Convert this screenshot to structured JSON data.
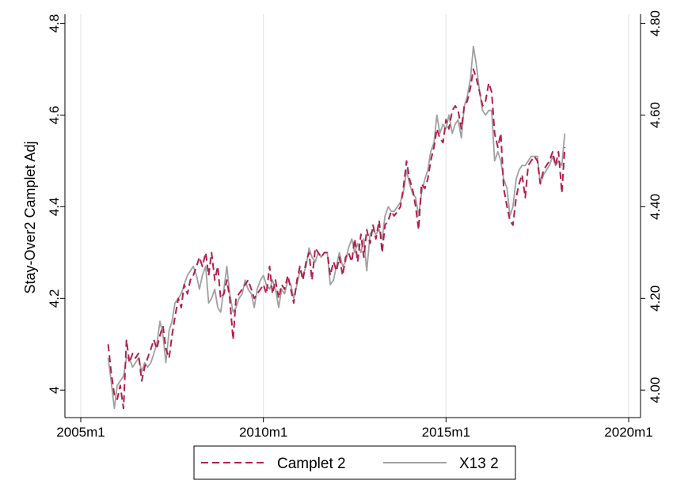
{
  "chart_data": {
    "type": "line",
    "ylabel": "Stay-Over2 Camplet Adj",
    "x_ticks": [
      "2005m1",
      "2010m1",
      "2015m1",
      "2020m1"
    ],
    "x_range": [
      2005.0,
      2020.0
    ],
    "y_left_ticks": [
      "4",
      "4.2",
      "4.4",
      "4.6",
      "4.8"
    ],
    "y_right_ticks": [
      "4.00",
      "4.20",
      "4.40",
      "4.60",
      "4.80"
    ],
    "y_range": [
      3.94,
      4.82
    ],
    "grid": "vertical",
    "legend_position": "bottom",
    "series": [
      {
        "name": "Camplet 2",
        "color": "#b41e4b",
        "style": "dashed",
        "points": [
          [
            2005.75,
            4.1
          ],
          [
            2005.83,
            4.04
          ],
          [
            2005.92,
            3.99
          ],
          [
            2006.0,
            3.98
          ],
          [
            2006.08,
            4.01
          ],
          [
            2006.17,
            3.96
          ],
          [
            2006.25,
            4.11
          ],
          [
            2006.33,
            4.06
          ],
          [
            2006.42,
            4.08
          ],
          [
            2006.5,
            4.07
          ],
          [
            2006.58,
            4.08
          ],
          [
            2006.67,
            4.02
          ],
          [
            2006.75,
            4.05
          ],
          [
            2006.83,
            4.07
          ],
          [
            2006.92,
            4.09
          ],
          [
            2007.0,
            4.11
          ],
          [
            2007.08,
            4.09
          ],
          [
            2007.17,
            4.12
          ],
          [
            2007.25,
            4.14
          ],
          [
            2007.33,
            4.09
          ],
          [
            2007.42,
            4.07
          ],
          [
            2007.5,
            4.12
          ],
          [
            2007.58,
            4.16
          ],
          [
            2007.67,
            4.2
          ],
          [
            2007.75,
            4.18
          ],
          [
            2007.83,
            4.23
          ],
          [
            2007.92,
            4.21
          ],
          [
            2008.0,
            4.24
          ],
          [
            2008.08,
            4.25
          ],
          [
            2008.17,
            4.27
          ],
          [
            2008.25,
            4.29
          ],
          [
            2008.33,
            4.27
          ],
          [
            2008.42,
            4.3
          ],
          [
            2008.5,
            4.25
          ],
          [
            2008.58,
            4.3
          ],
          [
            2008.67,
            4.24
          ],
          [
            2008.75,
            4.27
          ],
          [
            2008.83,
            4.2
          ],
          [
            2008.92,
            4.21
          ],
          [
            2009.0,
            4.24
          ],
          [
            2009.08,
            4.2
          ],
          [
            2009.17,
            4.11
          ],
          [
            2009.25,
            4.2
          ],
          [
            2009.33,
            4.21
          ],
          [
            2009.42,
            4.22
          ],
          [
            2009.5,
            4.23
          ],
          [
            2009.58,
            4.24
          ],
          [
            2009.67,
            4.22
          ],
          [
            2009.75,
            4.2
          ],
          [
            2009.83,
            4.21
          ],
          [
            2009.92,
            4.22
          ],
          [
            2010.0,
            4.23
          ],
          [
            2010.08,
            4.21
          ],
          [
            2010.17,
            4.27
          ],
          [
            2010.25,
            4.21
          ],
          [
            2010.33,
            4.24
          ],
          [
            2010.42,
            4.2
          ],
          [
            2010.5,
            4.23
          ],
          [
            2010.58,
            4.22
          ],
          [
            2010.67,
            4.25
          ],
          [
            2010.75,
            4.22
          ],
          [
            2010.83,
            4.19
          ],
          [
            2010.92,
            4.24
          ],
          [
            2011.0,
            4.27
          ],
          [
            2011.08,
            4.24
          ],
          [
            2011.17,
            4.28
          ],
          [
            2011.25,
            4.3
          ],
          [
            2011.33,
            4.24
          ],
          [
            2011.42,
            4.31
          ],
          [
            2011.5,
            4.3
          ],
          [
            2011.58,
            4.29
          ],
          [
            2011.67,
            4.3
          ],
          [
            2011.75,
            4.3
          ],
          [
            2011.83,
            4.25
          ],
          [
            2011.92,
            4.28
          ],
          [
            2012.0,
            4.26
          ],
          [
            2012.08,
            4.29
          ],
          [
            2012.17,
            4.25
          ],
          [
            2012.25,
            4.29
          ],
          [
            2012.33,
            4.3
          ],
          [
            2012.42,
            4.28
          ],
          [
            2012.5,
            4.33
          ],
          [
            2012.58,
            4.28
          ],
          [
            2012.67,
            4.34
          ],
          [
            2012.75,
            4.29
          ],
          [
            2012.83,
            4.35
          ],
          [
            2012.92,
            4.32
          ],
          [
            2013.0,
            4.36
          ],
          [
            2013.08,
            4.33
          ],
          [
            2013.17,
            4.37
          ],
          [
            2013.25,
            4.3
          ],
          [
            2013.33,
            4.36
          ],
          [
            2013.42,
            4.37
          ],
          [
            2013.5,
            4.39
          ],
          [
            2013.58,
            4.38
          ],
          [
            2013.67,
            4.39
          ],
          [
            2013.75,
            4.4
          ],
          [
            2013.83,
            4.44
          ],
          [
            2013.92,
            4.5
          ],
          [
            2014.0,
            4.46
          ],
          [
            2014.08,
            4.44
          ],
          [
            2014.17,
            4.4
          ],
          [
            2014.25,
            4.35
          ],
          [
            2014.33,
            4.45
          ],
          [
            2014.42,
            4.44
          ],
          [
            2014.5,
            4.46
          ],
          [
            2014.58,
            4.5
          ],
          [
            2014.67,
            4.53
          ],
          [
            2014.75,
            4.57
          ],
          [
            2014.83,
            4.55
          ],
          [
            2014.92,
            4.54
          ],
          [
            2015.0,
            4.59
          ],
          [
            2015.08,
            4.57
          ],
          [
            2015.17,
            4.61
          ],
          [
            2015.25,
            4.62
          ],
          [
            2015.33,
            4.61
          ],
          [
            2015.42,
            4.57
          ],
          [
            2015.5,
            4.62
          ],
          [
            2015.58,
            4.63
          ],
          [
            2015.67,
            4.66
          ],
          [
            2015.75,
            4.7
          ],
          [
            2015.83,
            4.68
          ],
          [
            2015.92,
            4.65
          ],
          [
            2016.0,
            4.62
          ],
          [
            2016.08,
            4.63
          ],
          [
            2016.17,
            4.67
          ],
          [
            2016.25,
            4.65
          ],
          [
            2016.33,
            4.56
          ],
          [
            2016.42,
            4.53
          ],
          [
            2016.5,
            4.56
          ],
          [
            2016.58,
            4.44
          ],
          [
            2016.67,
            4.4
          ],
          [
            2016.75,
            4.37
          ],
          [
            2016.83,
            4.36
          ],
          [
            2016.92,
            4.42
          ],
          [
            2017.0,
            4.45
          ],
          [
            2017.08,
            4.47
          ],
          [
            2017.17,
            4.42
          ],
          [
            2017.25,
            4.49
          ],
          [
            2017.33,
            4.5
          ],
          [
            2017.42,
            4.51
          ],
          [
            2017.5,
            4.5
          ],
          [
            2017.58,
            4.45
          ],
          [
            2017.67,
            4.48
          ],
          [
            2017.75,
            4.49
          ],
          [
            2017.83,
            4.5
          ],
          [
            2017.92,
            4.52
          ],
          [
            2018.0,
            4.49
          ],
          [
            2018.08,
            4.52
          ],
          [
            2018.17,
            4.43
          ],
          [
            2018.25,
            4.53
          ]
        ]
      },
      {
        "name": "X13 2",
        "color": "#a0a0a0",
        "style": "solid",
        "points": [
          [
            2005.75,
            4.07
          ],
          [
            2005.83,
            4.02
          ],
          [
            2005.92,
            3.96
          ],
          [
            2006.0,
            4.01
          ],
          [
            2006.08,
            4.02
          ],
          [
            2006.17,
            4.03
          ],
          [
            2006.25,
            4.07
          ],
          [
            2006.33,
            4.07
          ],
          [
            2006.42,
            4.05
          ],
          [
            2006.5,
            4.06
          ],
          [
            2006.58,
            4.07
          ],
          [
            2006.67,
            4.04
          ],
          [
            2006.75,
            4.06
          ],
          [
            2006.83,
            4.05
          ],
          [
            2006.92,
            4.06
          ],
          [
            2007.0,
            4.08
          ],
          [
            2007.08,
            4.1
          ],
          [
            2007.17,
            4.15
          ],
          [
            2007.25,
            4.12
          ],
          [
            2007.33,
            4.06
          ],
          [
            2007.42,
            4.13
          ],
          [
            2007.5,
            4.15
          ],
          [
            2007.58,
            4.19
          ],
          [
            2007.67,
            4.2
          ],
          [
            2007.75,
            4.21
          ],
          [
            2007.83,
            4.23
          ],
          [
            2007.92,
            4.25
          ],
          [
            2008.0,
            4.26
          ],
          [
            2008.08,
            4.27
          ],
          [
            2008.17,
            4.25
          ],
          [
            2008.25,
            4.22
          ],
          [
            2008.33,
            4.25
          ],
          [
            2008.42,
            4.27
          ],
          [
            2008.5,
            4.19
          ],
          [
            2008.58,
            4.2
          ],
          [
            2008.67,
            4.22
          ],
          [
            2008.75,
            4.18
          ],
          [
            2008.83,
            4.17
          ],
          [
            2008.92,
            4.22
          ],
          [
            2009.0,
            4.27
          ],
          [
            2009.08,
            4.21
          ],
          [
            2009.17,
            4.17
          ],
          [
            2009.25,
            4.18
          ],
          [
            2009.33,
            4.2
          ],
          [
            2009.42,
            4.21
          ],
          [
            2009.5,
            4.24
          ],
          [
            2009.58,
            4.22
          ],
          [
            2009.67,
            4.21
          ],
          [
            2009.75,
            4.18
          ],
          [
            2009.83,
            4.22
          ],
          [
            2009.92,
            4.24
          ],
          [
            2010.0,
            4.25
          ],
          [
            2010.08,
            4.23
          ],
          [
            2010.17,
            4.22
          ],
          [
            2010.25,
            4.24
          ],
          [
            2010.33,
            4.22
          ],
          [
            2010.42,
            4.18
          ],
          [
            2010.5,
            4.22
          ],
          [
            2010.58,
            4.21
          ],
          [
            2010.67,
            4.24
          ],
          [
            2010.75,
            4.23
          ],
          [
            2010.83,
            4.2
          ],
          [
            2010.92,
            4.23
          ],
          [
            2011.0,
            4.26
          ],
          [
            2011.08,
            4.25
          ],
          [
            2011.17,
            4.27
          ],
          [
            2011.25,
            4.31
          ],
          [
            2011.33,
            4.29
          ],
          [
            2011.42,
            4.28
          ],
          [
            2011.5,
            4.3
          ],
          [
            2011.58,
            4.29
          ],
          [
            2011.67,
            4.3
          ],
          [
            2011.75,
            4.3
          ],
          [
            2011.83,
            4.23
          ],
          [
            2011.92,
            4.24
          ],
          [
            2012.0,
            4.27
          ],
          [
            2012.08,
            4.3
          ],
          [
            2012.17,
            4.27
          ],
          [
            2012.25,
            4.28
          ],
          [
            2012.33,
            4.31
          ],
          [
            2012.42,
            4.33
          ],
          [
            2012.5,
            4.3
          ],
          [
            2012.58,
            4.32
          ],
          [
            2012.67,
            4.3
          ],
          [
            2012.75,
            4.33
          ],
          [
            2012.83,
            4.26
          ],
          [
            2012.92,
            4.34
          ],
          [
            2013.0,
            4.35
          ],
          [
            2013.08,
            4.34
          ],
          [
            2013.17,
            4.35
          ],
          [
            2013.25,
            4.33
          ],
          [
            2013.33,
            4.38
          ],
          [
            2013.42,
            4.4
          ],
          [
            2013.5,
            4.39
          ],
          [
            2013.58,
            4.39
          ],
          [
            2013.67,
            4.4
          ],
          [
            2013.75,
            4.41
          ],
          [
            2013.83,
            4.43
          ],
          [
            2013.92,
            4.48
          ],
          [
            2014.0,
            4.45
          ],
          [
            2014.08,
            4.43
          ],
          [
            2014.17,
            4.42
          ],
          [
            2014.25,
            4.38
          ],
          [
            2014.33,
            4.43
          ],
          [
            2014.42,
            4.46
          ],
          [
            2014.5,
            4.48
          ],
          [
            2014.58,
            4.52
          ],
          [
            2014.67,
            4.54
          ],
          [
            2014.75,
            4.6
          ],
          [
            2014.83,
            4.56
          ],
          [
            2014.92,
            4.58
          ],
          [
            2015.0,
            4.57
          ],
          [
            2015.08,
            4.6
          ],
          [
            2015.17,
            4.56
          ],
          [
            2015.25,
            4.58
          ],
          [
            2015.33,
            4.59
          ],
          [
            2015.42,
            4.55
          ],
          [
            2015.5,
            4.62
          ],
          [
            2015.58,
            4.64
          ],
          [
            2015.67,
            4.68
          ],
          [
            2015.75,
            4.75
          ],
          [
            2015.83,
            4.71
          ],
          [
            2015.92,
            4.65
          ],
          [
            2016.0,
            4.61
          ],
          [
            2016.08,
            4.6
          ],
          [
            2016.17,
            4.61
          ],
          [
            2016.25,
            4.61
          ],
          [
            2016.33,
            4.5
          ],
          [
            2016.42,
            4.52
          ],
          [
            2016.5,
            4.5
          ],
          [
            2016.58,
            4.46
          ],
          [
            2016.67,
            4.44
          ],
          [
            2016.75,
            4.38
          ],
          [
            2016.83,
            4.4
          ],
          [
            2016.92,
            4.46
          ],
          [
            2017.0,
            4.48
          ],
          [
            2017.08,
            4.49
          ],
          [
            2017.17,
            4.49
          ],
          [
            2017.25,
            4.5
          ],
          [
            2017.33,
            4.51
          ],
          [
            2017.42,
            4.51
          ],
          [
            2017.5,
            4.51
          ],
          [
            2017.58,
            4.45
          ],
          [
            2017.67,
            4.47
          ],
          [
            2017.75,
            4.48
          ],
          [
            2017.83,
            4.49
          ],
          [
            2017.92,
            4.51
          ],
          [
            2018.0,
            4.49
          ],
          [
            2018.08,
            4.5
          ],
          [
            2018.17,
            4.49
          ],
          [
            2018.25,
            4.56
          ]
        ]
      }
    ]
  }
}
